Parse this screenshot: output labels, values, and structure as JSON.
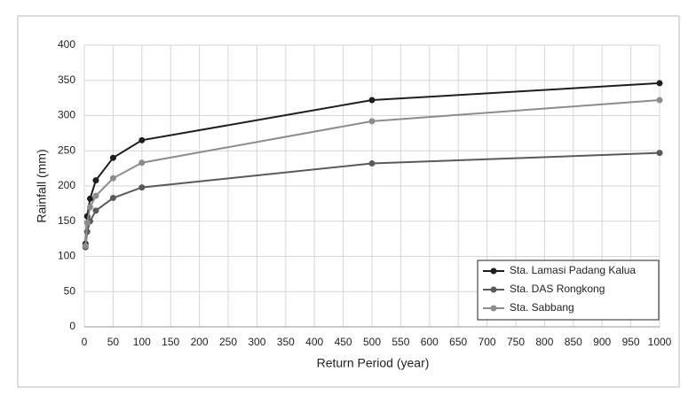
{
  "chart_data": {
    "type": "line",
    "x_label": "Return Period (year)",
    "y_label": "Rainfall (mm)",
    "x": [
      2,
      5,
      10,
      20,
      50,
      100,
      500,
      1000
    ],
    "series": [
      {
        "name": "Sta. Lamasi Padang Kalua",
        "color": "#1e1e1e",
        "values": [
          118,
          157,
          182,
          208,
          240,
          265,
          322,
          346
        ]
      },
      {
        "name": "Sta. DAS Rongkong",
        "color": "#5a5a5a",
        "values": [
          113,
          135,
          150,
          165,
          183,
          198,
          232,
          247
        ]
      },
      {
        "name": "Sta. Sabbang",
        "color": "#8c8c8c",
        "values": [
          115,
          148,
          170,
          186,
          211,
          233,
          292,
          322
        ]
      }
    ],
    "xlim": [
      0,
      1000
    ],
    "xticks": [
      0,
      50,
      100,
      150,
      200,
      250,
      300,
      350,
      400,
      450,
      500,
      550,
      600,
      650,
      700,
      750,
      800,
      850,
      900,
      950,
      1000
    ],
    "ylim": [
      0,
      400
    ],
    "yticks": [
      0,
      50,
      100,
      150,
      200,
      250,
      300,
      350,
      400
    ],
    "grid": true,
    "legend": "lower right"
  }
}
